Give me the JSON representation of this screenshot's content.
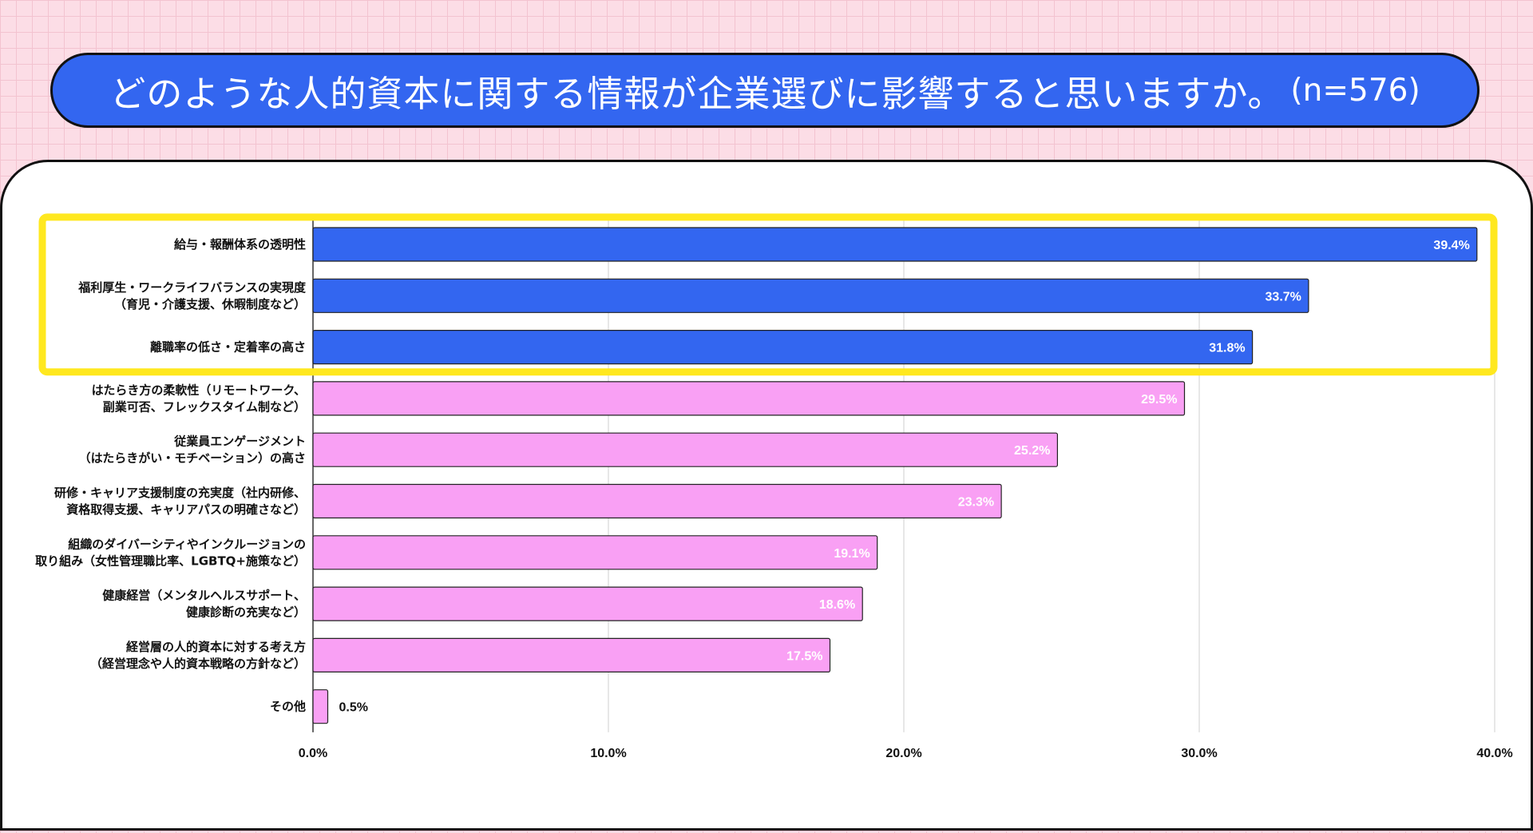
{
  "title": {
    "main": "どのような人的資本に関する情報が企業選びに影響すると思いますか。",
    "n": "(n=576)"
  },
  "colors": {
    "highlight_bar": "#3366f0",
    "other_bar": "#f9a0f4",
    "highlight_box": "#ffe81f",
    "title_bg": "#3366f0"
  },
  "chart_data": {
    "type": "bar",
    "orientation": "horizontal",
    "categories": [
      [
        "給与・報酬体系の透明性"
      ],
      [
        "福利厚生・ワークライフバランスの実現度",
        "（育児・介護支援、休暇制度など）"
      ],
      [
        "離職率の低さ・定着率の高さ"
      ],
      [
        "はたらき方の柔軟性（リモートワーク、",
        "副業可否、フレックスタイム制など）"
      ],
      [
        "従業員エンゲージメント",
        "（はたらきがい・モチベーション）の高さ"
      ],
      [
        "研修・キャリア支援制度の充実度（社内研修、",
        "資格取得支援、キャリアパスの明確さなど）"
      ],
      [
        "組織のダイバーシティやインクルージョンの",
        "取り組み（女性管理職比率、LGBTQ+施策など）"
      ],
      [
        "健康経営（メンタルヘルスサポート、",
        "健康診断の充実など）"
      ],
      [
        "経営層の人的資本に対する考え方",
        "（経営理念や人的資本戦略の方針など）"
      ],
      [
        "その他"
      ]
    ],
    "values": [
      39.4,
      33.7,
      31.8,
      29.5,
      25.2,
      23.3,
      19.1,
      18.6,
      17.5,
      0.5
    ],
    "value_labels": [
      "39.4%",
      "33.7%",
      "31.8%",
      "29.5%",
      "25.2%",
      "23.3%",
      "19.1%",
      "18.6%",
      "17.5%",
      "0.5%"
    ],
    "highlighted_count": 3,
    "xlim": [
      0,
      40
    ],
    "xticks": [
      0,
      10,
      20,
      30,
      40
    ],
    "xtick_labels": [
      "0.0%",
      "10.0%",
      "20.0%",
      "30.0%",
      "40.0%"
    ],
    "grid": true
  }
}
